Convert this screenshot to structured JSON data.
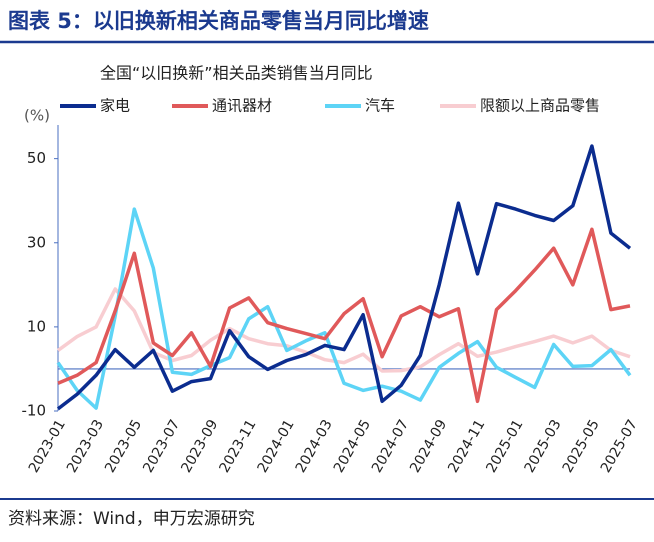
{
  "header": {
    "title": "图表 5：以旧换新相关商品零售当月同比增速"
  },
  "chart_data": {
    "type": "line",
    "title": "全国“以旧换新”相关品类销售当月同比",
    "y_label": "(%)",
    "categories": [
      "2023-01",
      null,
      "2023-03",
      null,
      "2023-05",
      null,
      "2023-07",
      null,
      "2023-09",
      null,
      "2023-11",
      null,
      "2024-01",
      null,
      "2024-03",
      null,
      "2024-05",
      null,
      "2024-07",
      null,
      "2024-09",
      null,
      "2024-11",
      null,
      "2025-01",
      null,
      "2025-03",
      null,
      "2025-05",
      null,
      "2025-07"
    ],
    "series": [
      {
        "name": "家电",
        "color": "#0b2c8f",
        "values": [
          -9.5,
          -6,
          -1.5,
          4.6,
          0.4,
          4.4,
          -5.3,
          -3,
          -2.3,
          9.1,
          2.9,
          -0.1,
          2,
          3.4,
          5.6,
          4.6,
          12.9,
          -7.7,
          -3.9,
          3.2,
          20.1,
          39.4,
          22.6,
          39.3,
          38,
          36.5,
          35.3,
          38.8,
          53,
          32.3,
          28.7
        ]
      },
      {
        "name": "通讯器材",
        "color": "#e0595a",
        "values": [
          -3.4,
          -1.5,
          1.5,
          13.8,
          27.5,
          6.2,
          3.2,
          8.6,
          0.6,
          14.5,
          16.9,
          11,
          9.6,
          8.4,
          7.2,
          13.1,
          16.7,
          2.9,
          12.6,
          14.8,
          12.4,
          14.3,
          -7.7,
          14.1,
          18.6,
          23.5,
          28.7,
          20,
          33.2,
          14.1,
          15
        ]
      },
      {
        "name": "汽车",
        "color": "#5dd4f6",
        "values": [
          1.5,
          -5.1,
          -9.3,
          12.6,
          38,
          24,
          -0.8,
          -1.3,
          0.8,
          2.7,
          11.9,
          14.8,
          4.4,
          6.7,
          8.6,
          -3.4,
          -5.1,
          -4.1,
          -5.3,
          -7.4,
          0.4,
          3.7,
          6.5,
          0.4,
          -2,
          -4.4,
          5.8,
          0.6,
          0.8,
          4.6,
          -1.5
        ]
      },
      {
        "name": "限额以上商品零售",
        "color": "#f8cdd1",
        "values": [
          4.4,
          7.7,
          10,
          19,
          13.8,
          3.9,
          2,
          3.2,
          6.8,
          9.6,
          7.2,
          6,
          5.5,
          4,
          2.2,
          1.5,
          3.5,
          -0.5,
          -0.4,
          0.5,
          3.4,
          6,
          3,
          4,
          5.3,
          6.5,
          7.8,
          6.2,
          7.8,
          4.4,
          2.9
        ]
      }
    ],
    "ylim": [
      -10,
      58
    ],
    "yticks": [
      -10,
      10,
      30,
      50
    ],
    "grid": false,
    "legend": "top"
  },
  "footer": {
    "source": "资料来源：Wind，申万宏源研究"
  }
}
